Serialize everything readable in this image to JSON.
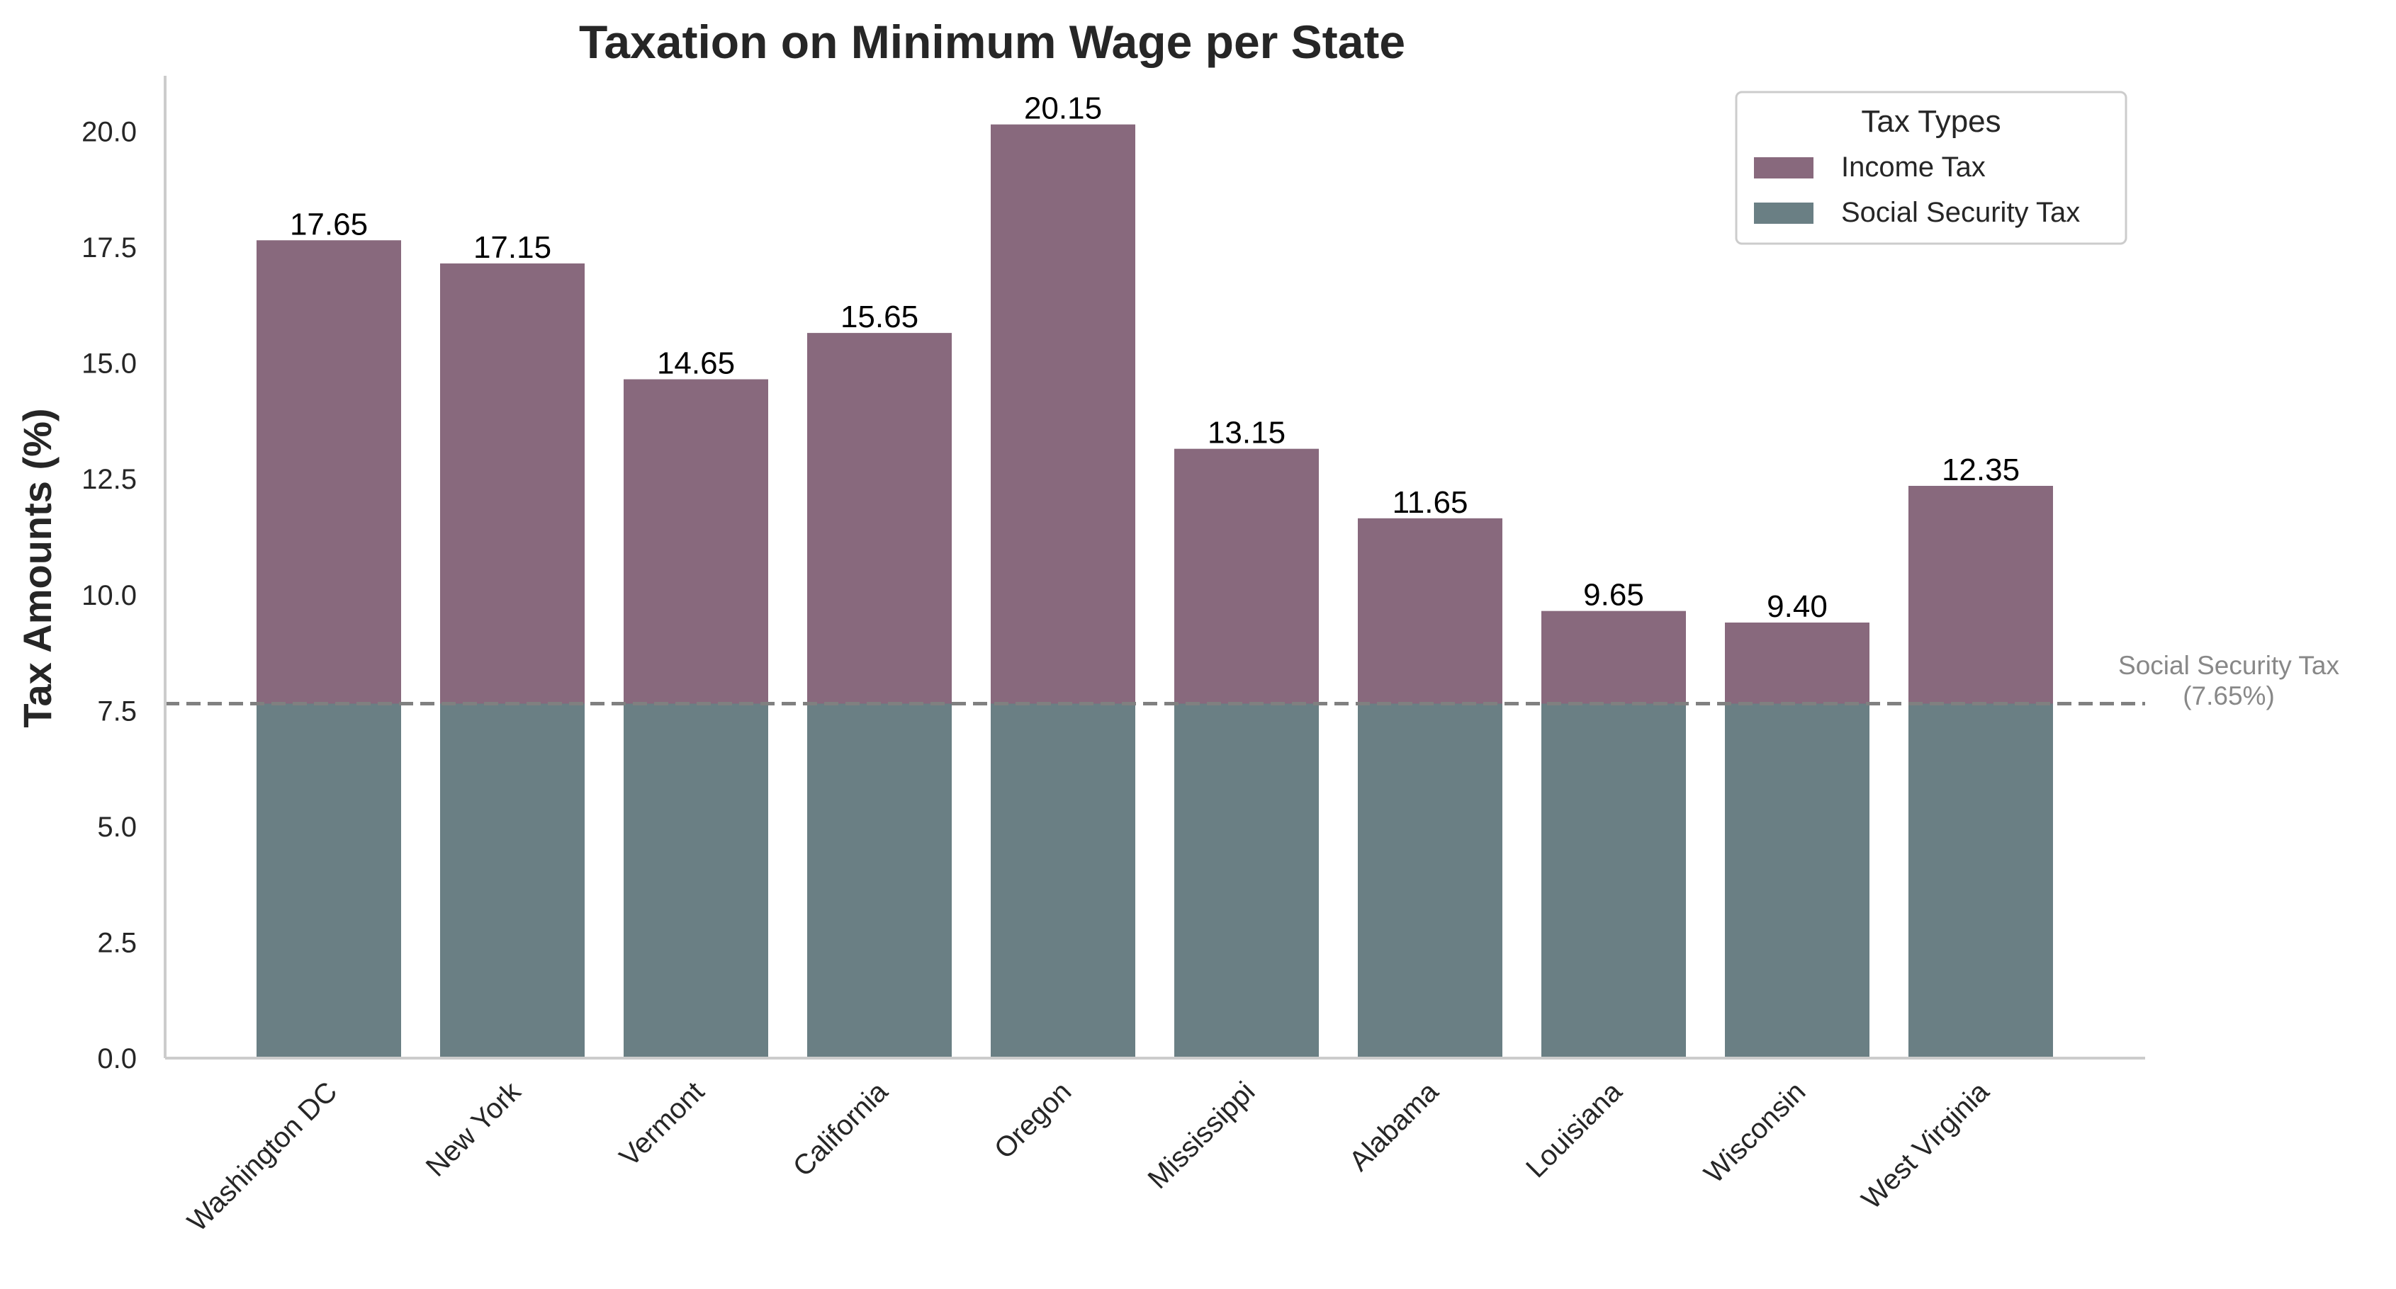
{
  "colors": {
    "income": "#88697d",
    "social_security": "#6a7f84",
    "reference_line": "#808080",
    "axis": "#cccccc"
  },
  "chart_data": {
    "type": "bar",
    "stacked": true,
    "title": "Taxation on Minimum Wage per State",
    "xlabel": "",
    "ylabel": "Tax Amounts (%)",
    "ylim": [
      0,
      21.2
    ],
    "yticks": [
      0.0,
      2.5,
      5.0,
      7.5,
      10.0,
      12.5,
      15.0,
      17.5,
      20.0
    ],
    "ytick_labels": [
      "0.0",
      "2.5",
      "5.0",
      "7.5",
      "10.0",
      "12.5",
      "15.0",
      "17.5",
      "20.0"
    ],
    "grid": false,
    "categories": [
      "Washington DC",
      "New York",
      "Vermont",
      "California",
      "Oregon",
      "Mississippi",
      "Alabama",
      "Louisiana",
      "Wisconsin",
      "West Virginia"
    ],
    "series": [
      {
        "name": "Social Security Tax",
        "values": [
          7.65,
          7.65,
          7.65,
          7.65,
          7.65,
          7.65,
          7.65,
          7.65,
          7.65,
          7.65
        ]
      },
      {
        "name": "Income Tax",
        "values": [
          10.0,
          9.5,
          7.0,
          8.0,
          12.5,
          5.5,
          4.0,
          2.0,
          1.75,
          4.7
        ]
      }
    ],
    "totals": [
      17.65,
      17.15,
      14.65,
      15.65,
      20.15,
      13.15,
      11.65,
      9.65,
      9.4,
      12.35
    ],
    "total_labels": [
      "17.65",
      "17.15",
      "14.65",
      "15.65",
      "20.15",
      "13.15",
      "11.65",
      "9.65",
      "9.40",
      "12.35"
    ],
    "legend": {
      "title": "Tax Types",
      "placement": "top-right",
      "entries": [
        "Income Tax",
        "Social Security Tax"
      ]
    },
    "reference_line": {
      "value": 7.65,
      "style": "dashed",
      "label_line1": "Social Security Tax",
      "label_line2": "(7.65%)"
    }
  }
}
